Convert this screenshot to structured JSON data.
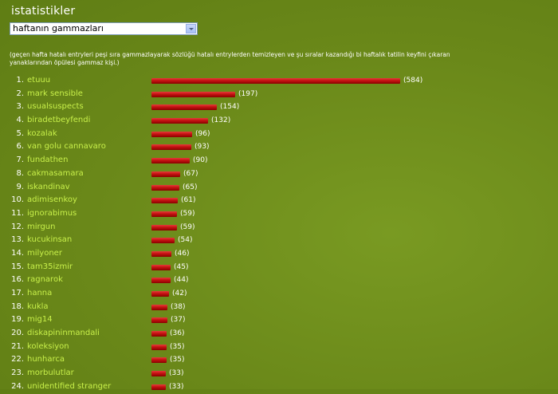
{
  "header": {
    "title": "istatistikler"
  },
  "filter": {
    "selected": "haftanın gammazları"
  },
  "description": "(geçen hafta hatalı entryleri peşi sıra gammazlayarak sözlüğü hatalı entrylerden temizleyen ve şu sıralar kazandığı bi haftalık tatilin keyfini çıkaran yanaklarından öpülesi gammaz kişi.)",
  "chart_data": {
    "type": "bar",
    "title": "",
    "xlabel": "",
    "ylabel": "",
    "categories": [
      "etuuu",
      "mark sensible",
      "usualsuspects",
      "biradetbeyfendi",
      "kozalak",
      "van golu cannavaro",
      "fundathen",
      "cakmasamara",
      "iskandinav",
      "adimisenkoy",
      "ignorabimus",
      "mirgun",
      "kucukinsan",
      "milyoner",
      "tam35izmir",
      "ragnarok",
      "hanna",
      "kukla",
      "mig14",
      "diskapininmandali",
      "koleksiyon",
      "hunharca",
      "morbulutlar",
      "unidentified stranger"
    ],
    "values": [
      584,
      197,
      154,
      132,
      96,
      93,
      90,
      67,
      65,
      61,
      59,
      59,
      54,
      46,
      45,
      44,
      42,
      38,
      37,
      36,
      35,
      35,
      33,
      33
    ],
    "ranks": [
      "1.",
      "2.",
      "3.",
      "4.",
      "5.",
      "6.",
      "7.",
      "8.",
      "9.",
      "10.",
      "11.",
      "12.",
      "13.",
      "14.",
      "15.",
      "16.",
      "17.",
      "18.",
      "19.",
      "20.",
      "21.",
      "22.",
      "23.",
      "24."
    ],
    "count_labels": [
      "(584)",
      "(197)",
      "(154)",
      "(132)",
      "(96)",
      "(93)",
      "(90)",
      "(67)",
      "(65)",
      "(61)",
      "(59)",
      "(59)",
      "(54)",
      "(46)",
      "(45)",
      "(44)",
      "(42)",
      "(38)",
      "(37)",
      "(36)",
      "(35)",
      "(35)",
      "(33)",
      "(33)"
    ],
    "orientation": "horizontal",
    "bar_color": "#c41212",
    "name_color": "#c8f04a"
  }
}
